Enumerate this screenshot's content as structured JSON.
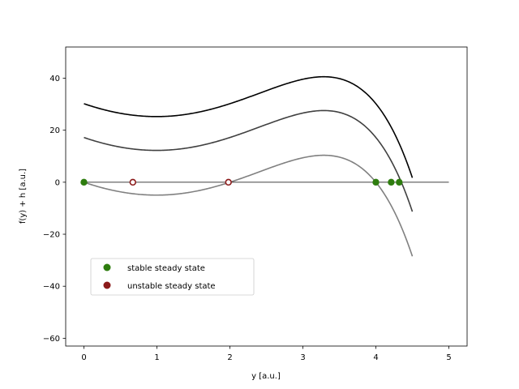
{
  "chart_data": {
    "type": "line",
    "title": "",
    "xlabel": "y [a.u.]",
    "ylabel": "f(y) + h [a.u.]",
    "xlim": [
      -0.25,
      5.25
    ],
    "ylim": [
      -63,
      52
    ],
    "xticks": [
      0,
      1,
      2,
      3,
      4,
      5
    ],
    "yticks": [
      -60,
      -40,
      -20,
      0,
      20,
      40
    ],
    "grid": false,
    "legend_position": "lower-left",
    "curve_function": {
      "form": "cubic_times_exp",
      "roots": [
        0,
        2,
        4
      ],
      "domain": [
        0,
        4.5
      ],
      "gain": 1.2,
      "growth_rate": 0.32
    },
    "series": [
      {
        "name": "",
        "h": 30.2,
        "color": "#000000"
      },
      {
        "name": "",
        "h": 17.2,
        "color": "#404040"
      },
      {
        "name": "",
        "h": 0,
        "color": "#808080"
      }
    ],
    "zero_line": {
      "y": 0,
      "x_range": [
        0,
        5
      ],
      "color": "#000000"
    },
    "steady_states": {
      "stable": {
        "label": "stable steady state",
        "color": "#2e7d0f",
        "points": [
          {
            "x": 0.0,
            "y": 0
          },
          {
            "x": 4.0,
            "y": 0
          },
          {
            "x": 4.21,
            "y": 0
          },
          {
            "x": 4.32,
            "y": 0
          }
        ]
      },
      "unstable": {
        "label": "unstable steady state",
        "color": "#8b1a1a",
        "points": [
          {
            "x": 0.67,
            "y": 0
          },
          {
            "x": 1.98,
            "y": 0
          }
        ]
      }
    }
  }
}
